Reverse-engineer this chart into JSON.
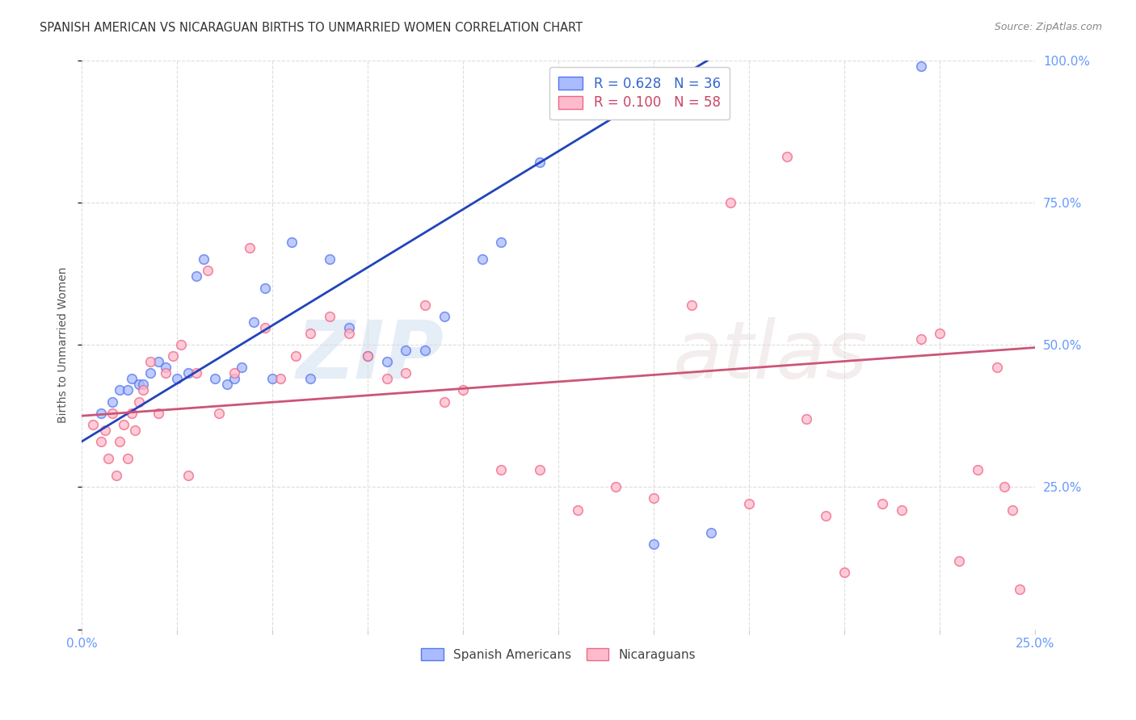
{
  "title": "SPANISH AMERICAN VS NICARAGUAN BIRTHS TO UNMARRIED WOMEN CORRELATION CHART",
  "source": "Source: ZipAtlas.com",
  "ylabel": "Births to Unmarried Women",
  "watermark_zip": "ZIP",
  "watermark_atlas": "atlas",
  "legend_label_blue": "R = 0.628   N = 36",
  "legend_label_pink": "R = 0.100   N = 58",
  "legend_color_blue": "#3366cc",
  "legend_color_pink": "#cc4466",
  "bottom_label_blue": "Spanish Americans",
  "bottom_label_pink": "Nicaraguans",
  "blue_fill": "#aabbff",
  "blue_edge": "#5577ee",
  "pink_fill": "#ffbbcc",
  "pink_edge": "#ee6688",
  "line_blue": "#2244bb",
  "line_pink": "#cc5577",
  "bg_color": "#ffffff",
  "grid_color": "#dddddd",
  "axis_label_color": "#6699ff",
  "xlim": [
    0.0,
    0.25
  ],
  "ylim": [
    0.0,
    1.0
  ],
  "blue_line_x": [
    0.0,
    0.25
  ],
  "blue_line_y": [
    0.33,
    1.35
  ],
  "pink_line_x": [
    0.0,
    0.25
  ],
  "pink_line_y": [
    0.375,
    0.495
  ],
  "blue_x": [
    0.005,
    0.008,
    0.01,
    0.012,
    0.013,
    0.015,
    0.016,
    0.018,
    0.02,
    0.022,
    0.025,
    0.028,
    0.03,
    0.032,
    0.035,
    0.038,
    0.04,
    0.042,
    0.045,
    0.048,
    0.05,
    0.055,
    0.06,
    0.065,
    0.07,
    0.075,
    0.08,
    0.085,
    0.09,
    0.095,
    0.105,
    0.11,
    0.12,
    0.15,
    0.165,
    0.22
  ],
  "blue_y": [
    0.38,
    0.4,
    0.42,
    0.42,
    0.44,
    0.43,
    0.43,
    0.45,
    0.47,
    0.46,
    0.44,
    0.45,
    0.62,
    0.65,
    0.44,
    0.43,
    0.44,
    0.46,
    0.54,
    0.6,
    0.44,
    0.68,
    0.44,
    0.65,
    0.53,
    0.48,
    0.47,
    0.49,
    0.49,
    0.55,
    0.65,
    0.68,
    0.82,
    0.15,
    0.17,
    0.99
  ],
  "pink_x": [
    0.003,
    0.005,
    0.006,
    0.007,
    0.008,
    0.009,
    0.01,
    0.011,
    0.012,
    0.013,
    0.014,
    0.015,
    0.016,
    0.018,
    0.02,
    0.022,
    0.024,
    0.026,
    0.028,
    0.03,
    0.033,
    0.036,
    0.04,
    0.044,
    0.048,
    0.052,
    0.056,
    0.06,
    0.065,
    0.07,
    0.075,
    0.08,
    0.085,
    0.09,
    0.095,
    0.1,
    0.11,
    0.12,
    0.13,
    0.14,
    0.15,
    0.16,
    0.17,
    0.175,
    0.185,
    0.19,
    0.195,
    0.2,
    0.21,
    0.215,
    0.22,
    0.225,
    0.23,
    0.235,
    0.24,
    0.242,
    0.244,
    0.246
  ],
  "pink_y": [
    0.36,
    0.33,
    0.35,
    0.3,
    0.38,
    0.27,
    0.33,
    0.36,
    0.3,
    0.38,
    0.35,
    0.4,
    0.42,
    0.47,
    0.38,
    0.45,
    0.48,
    0.5,
    0.27,
    0.45,
    0.63,
    0.38,
    0.45,
    0.67,
    0.53,
    0.44,
    0.48,
    0.52,
    0.55,
    0.52,
    0.48,
    0.44,
    0.45,
    0.57,
    0.4,
    0.42,
    0.28,
    0.28,
    0.21,
    0.25,
    0.23,
    0.57,
    0.75,
    0.22,
    0.83,
    0.37,
    0.2,
    0.1,
    0.22,
    0.21,
    0.51,
    0.52,
    0.12,
    0.28,
    0.46,
    0.25,
    0.21,
    0.07
  ],
  "scatter_size": 70,
  "scatter_alpha": 0.75
}
